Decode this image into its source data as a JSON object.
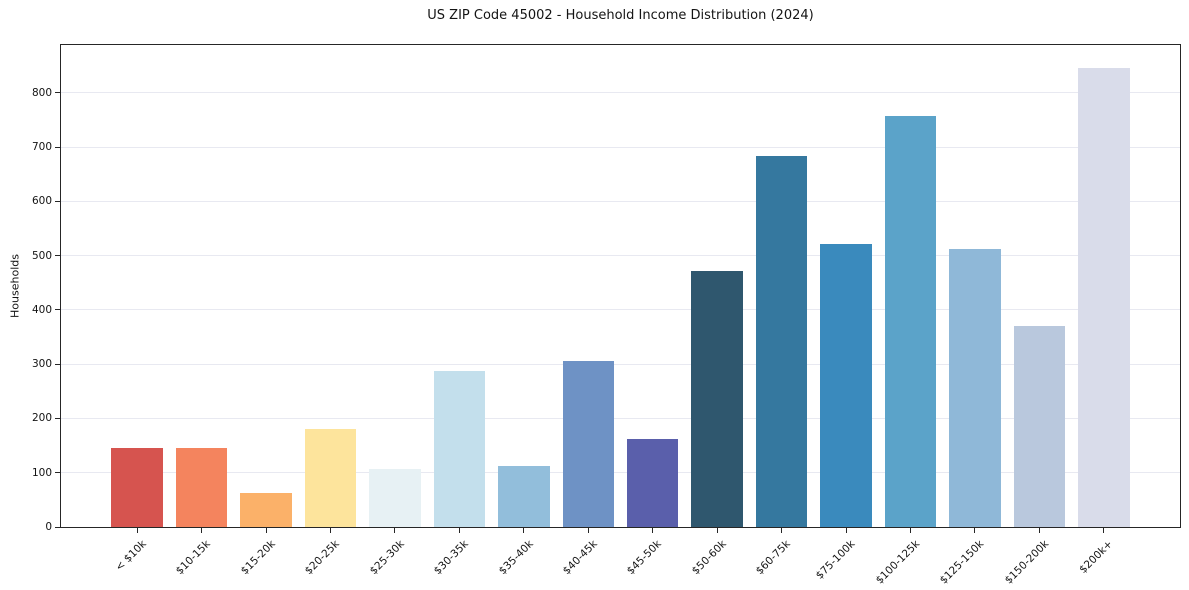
{
  "chart_data": {
    "type": "bar",
    "title": "US ZIP Code 45002 - Household Income Distribution (2024)",
    "xlabel": "",
    "ylabel": "Households",
    "categories": [
      "< $10k",
      "$10-15k",
      "$15-20k",
      "$20-25k",
      "$25-30k",
      "$30-35k",
      "$35-40k",
      "$40-45k",
      "$45-50k",
      "$50-60k",
      "$60-75k",
      "$75-100k",
      "$100-125k",
      "$125-150k",
      "$150-200k",
      "$200k+"
    ],
    "values": [
      145,
      145,
      62,
      180,
      107,
      287,
      112,
      306,
      162,
      471,
      683,
      521,
      758,
      513,
      370,
      845
    ],
    "bar_colors": [
      "#d6544f",
      "#f4845e",
      "#fbb169",
      "#fde49c",
      "#e7f1f4",
      "#c3dfec",
      "#92bedb",
      "#6e92c5",
      "#5a5fab",
      "#2f576e",
      "#35789f",
      "#3a8abd",
      "#5ba3c9",
      "#8fb8d8",
      "#b9c8dd",
      "#d9dcea"
    ],
    "yticks": [
      0,
      100,
      200,
      300,
      400,
      500,
      600,
      700,
      800
    ],
    "ylim": [
      0,
      888
    ],
    "grid": "horizontal",
    "gridline_color": "#e8e9f1",
    "axis_color": "#262626",
    "background": "#ffffff",
    "legend": "none"
  }
}
